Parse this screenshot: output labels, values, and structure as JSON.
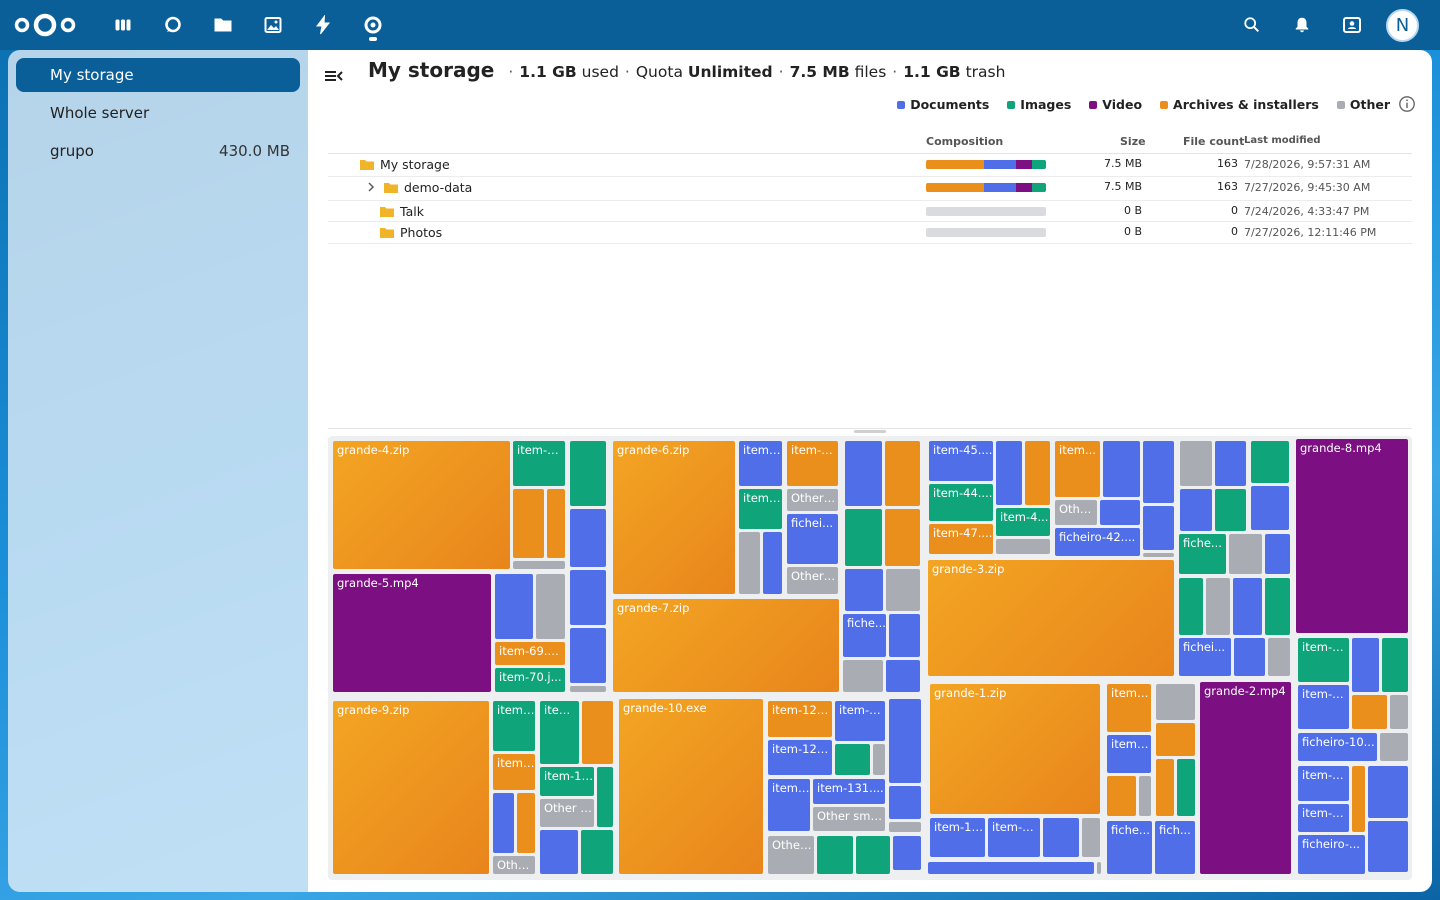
{
  "header": {
    "avatar_letter": "N",
    "apps": [
      "dashboard-icon",
      "talk-icon",
      "files-icon",
      "photos-icon",
      "activity-icon",
      "storage-icon"
    ],
    "actions": [
      "search-icon",
      "bell-icon",
      "contacts-icon"
    ]
  },
  "sidebar": {
    "items": [
      {
        "label": "My storage",
        "count": "",
        "active": true
      },
      {
        "label": "Whole server",
        "count": "",
        "active": false
      },
      {
        "label": "grupo",
        "count": "430.0 MB",
        "active": false
      }
    ]
  },
  "main": {
    "title": "My storage",
    "used": "1.1 GB",
    "used_word": "used",
    "quota_label": "Quota",
    "quota": "Unlimited",
    "files_size": "7.5 MB",
    "files_word": "files",
    "trash_size": "1.1 GB",
    "trash_word": "trash",
    "sep": "·"
  },
  "legend": [
    {
      "label": "Documents",
      "color": "#4f6ee8"
    },
    {
      "label": "Images",
      "color": "#0fa47a"
    },
    {
      "label": "Video",
      "color": "#7c0f82"
    },
    {
      "label": "Archives & installers",
      "color": "#eb8f1c"
    },
    {
      "label": "Other",
      "color": "#a9adb3"
    }
  ],
  "table": {
    "headers": {
      "composition": "Composition",
      "size": "Size",
      "file_count": "File count",
      "last_modified": "Last modified"
    },
    "rows": [
      {
        "name": "My storage",
        "size": "7.5 MB",
        "count": "163",
        "modified": "7/28/2026, 9:57:31 AM",
        "composition": [
          0.48,
          0.27,
          0.13,
          0.12
        ]
      },
      {
        "name": "demo-data",
        "size": "7.5 MB",
        "count": "163",
        "modified": "7/27/2026, 9:45:30 AM",
        "composition": [
          0.48,
          0.27,
          0.13,
          0.12
        ]
      },
      {
        "name": "Talk",
        "size": "0 B",
        "count": "0",
        "modified": "7/24/2026, 4:33:47 PM",
        "composition": []
      },
      {
        "name": "Photos",
        "size": "0 B",
        "count": "0",
        "modified": "7/27/2026, 12:11:46 PM",
        "composition": []
      }
    ]
  },
  "treemap": {
    "labels": {
      "g4": "grande-4.zip",
      "g6": "grande-6.zip",
      "g5": "grande-5.mp4",
      "g7": "grande-7.zip",
      "g9": "grande-9.zip",
      "g10": "grande-10.exe",
      "g3": "grande-3.zip",
      "g1": "grande-1.zip",
      "g2": "grande-2.mp4",
      "g8": "grande-8.mp4",
      "i6": "item-6...",
      "i8": "item-8...",
      "i69": "item-69.e...",
      "i70": "item-70.j...",
      "i45": "item-45....",
      "i44": "item-44....",
      "i47": "item-47....",
      "i4x": "item-4...",
      "i14": "item-14...",
      "i123": "item-123...",
      "i122": "item-122...",
      "i131": "item-131....",
      "i15": "item-15...",
      "idot": "item-...",
      "iitem": "item...",
      "i1": "item-1...",
      "i1b": "item-1...",
      "i1c": "item-1...",
      "i1d": "item-1...",
      "i1e": "item-1...",
      "i1f": "item-1...",
      "ia": "item-...",
      "ib": "item-...",
      "ic": "item-...",
      "id": "item-...",
      "ie": "item-...",
      "if": "item...",
      "ig": "item-...",
      "f42": "ficheiro-42....",
      "f10": "ficheiro-10...",
      "fa": "fichei...",
      "fb": "fiche...",
      "fc": "fiche...",
      "fd": "fichei...",
      "fe": "fiche...",
      "ff": "fich...",
      "fg": "ficheiro-...",
      "oa": "Other ...",
      "ob": "Other ...",
      "oc": "Other s...",
      "od": "Othe...",
      "oe": "Other sma...",
      "of": "Other...",
      "og": "Other..."
    }
  }
}
